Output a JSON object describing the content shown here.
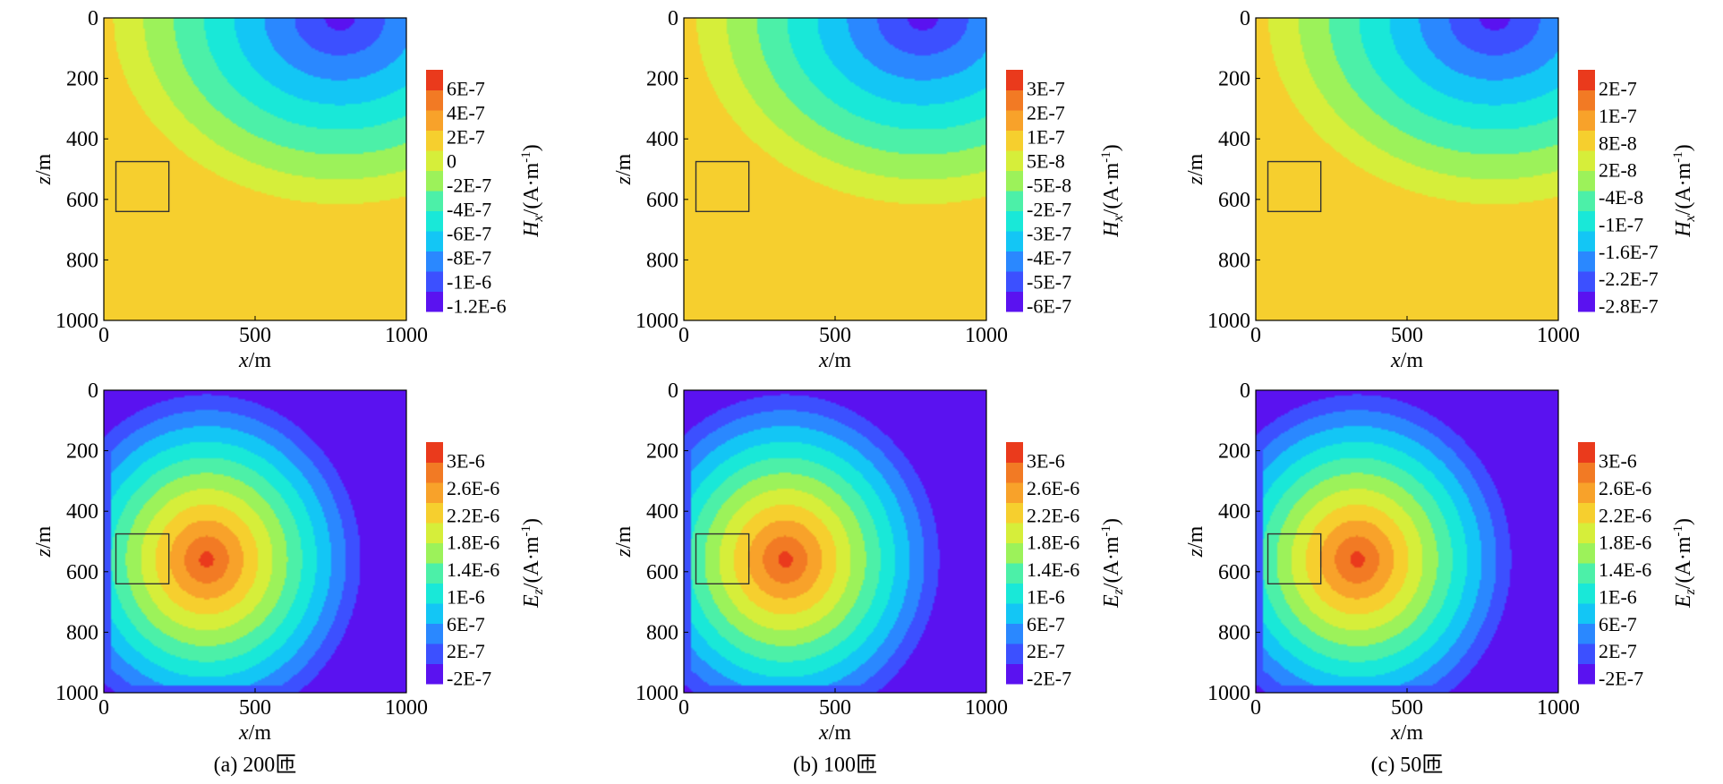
{
  "chart_data": [
    {
      "type": "heatmap",
      "panel": "a",
      "field": "Hx",
      "xlabel": {
        "var": "x",
        "unit": "/m"
      },
      "ylabel": {
        "var": "z",
        "unit": "/m"
      },
      "xlim": [
        0,
        1000
      ],
      "ylim": [
        0,
        1000
      ],
      "xticks": [
        "0",
        "500",
        "1000"
      ],
      "yticks": [
        "0",
        "200",
        "400",
        "600",
        "800",
        "1000"
      ],
      "anomaly_box": {
        "x": [
          40,
          215
        ],
        "z": [
          475,
          640
        ]
      },
      "colorbar": {
        "label": {
          "var": "H",
          "sub": "x",
          "unit_pre": "/(A·m",
          "unit_sup": "-1",
          "unit_post": ")"
        },
        "ticks": [
          "6E-7",
          "4E-7",
          "2E-7",
          "0",
          "-2E-7",
          "-4E-7",
          "-6E-7",
          "-8E-7",
          "-1E-6",
          "-1.2E-6"
        ]
      },
      "field_model": {
        "pattern": "hx",
        "hot_x": 780,
        "hot_z": 0
      }
    },
    {
      "type": "heatmap",
      "panel": "b",
      "field": "Hx",
      "xlabel": {
        "var": "x",
        "unit": "/m"
      },
      "ylabel": {
        "var": "z",
        "unit": "/m"
      },
      "xlim": [
        0,
        1000
      ],
      "ylim": [
        0,
        1000
      ],
      "xticks": [
        "0",
        "500",
        "1000"
      ],
      "yticks": [
        "0",
        "200",
        "400",
        "600",
        "800",
        "1000"
      ],
      "anomaly_box": {
        "x": [
          40,
          215
        ],
        "z": [
          475,
          640
        ]
      },
      "colorbar": {
        "label": {
          "var": "H",
          "sub": "x",
          "unit_pre": "/(A·m",
          "unit_sup": "-1",
          "unit_post": ")"
        },
        "ticks": [
          "3E-7",
          "2E-7",
          "1E-7",
          "5E-8",
          "-5E-8",
          "-2E-7",
          "-3E-7",
          "-4E-7",
          "-5E-7",
          "-6E-7"
        ]
      },
      "field_model": {
        "pattern": "hx",
        "hot_x": 790,
        "hot_z": 0
      }
    },
    {
      "type": "heatmap",
      "panel": "c",
      "field": "Hx",
      "xlabel": {
        "var": "x",
        "unit": "/m"
      },
      "ylabel": {
        "var": "z",
        "unit": "/m"
      },
      "xlim": [
        0,
        1000
      ],
      "ylim": [
        0,
        1000
      ],
      "xticks": [
        "0",
        "500",
        "1000"
      ],
      "yticks": [
        "0",
        "200",
        "400",
        "600",
        "800",
        "1000"
      ],
      "anomaly_box": {
        "x": [
          40,
          215
        ],
        "z": [
          475,
          640
        ]
      },
      "colorbar": {
        "label": {
          "var": "H",
          "sub": "x",
          "unit_pre": "/(A·m",
          "unit_sup": "-1",
          "unit_post": ")"
        },
        "ticks": [
          "2E-7",
          "1E-7",
          "8E-8",
          "2E-8",
          "-4E-8",
          "-1E-7",
          "-1.6E-7",
          "-2.2E-7",
          "-2.8E-7"
        ]
      },
      "field_model": {
        "pattern": "hx",
        "hot_x": 790,
        "hot_z": 0
      }
    },
    {
      "type": "heatmap",
      "panel": "a",
      "field": "Ez",
      "xlabel": {
        "var": "x",
        "unit": "/m"
      },
      "ylabel": {
        "var": "z",
        "unit": "/m"
      },
      "xlim": [
        0,
        1000
      ],
      "ylim": [
        0,
        1000
      ],
      "xticks": [
        "0",
        "500",
        "1000"
      ],
      "yticks": [
        "0",
        "200",
        "400",
        "600",
        "800",
        "1000"
      ],
      "anomaly_box": {
        "x": [
          40,
          215
        ],
        "z": [
          475,
          640
        ]
      },
      "colorbar": {
        "label": {
          "var": "E",
          "sub": "z",
          "unit_pre": "/(A·m",
          "unit_sup": "-1",
          "unit_post": ")"
        },
        "ticks": [
          "3E-6",
          "2.6E-6",
          "2.2E-6",
          "1.8E-6",
          "1.4E-6",
          "1E-6",
          "6E-7",
          "2E-7",
          "-2E-7"
        ]
      },
      "field_model": {
        "pattern": "ez",
        "hot_x": 340,
        "hot_z": 560
      }
    },
    {
      "type": "heatmap",
      "panel": "b",
      "field": "Ez",
      "xlabel": {
        "var": "x",
        "unit": "/m"
      },
      "ylabel": {
        "var": "z",
        "unit": "/m"
      },
      "xlim": [
        0,
        1000
      ],
      "ylim": [
        0,
        1000
      ],
      "xticks": [
        "0",
        "500",
        "1000"
      ],
      "yticks": [
        "0",
        "200",
        "400",
        "600",
        "800",
        "1000"
      ],
      "anomaly_box": {
        "x": [
          40,
          215
        ],
        "z": [
          475,
          640
        ]
      },
      "colorbar": {
        "label": {
          "var": "E",
          "sub": "z",
          "unit_pre": "/(A·m",
          "unit_sup": "-1",
          "unit_post": ")"
        },
        "ticks": [
          "3E-6",
          "2.6E-6",
          "2.2E-6",
          "1.8E-6",
          "1.4E-6",
          "1E-6",
          "6E-7",
          "2E-7",
          "-2E-7"
        ]
      },
      "field_model": {
        "pattern": "ez",
        "hot_x": 335,
        "hot_z": 560
      }
    },
    {
      "type": "heatmap",
      "panel": "c",
      "field": "Ez",
      "xlabel": {
        "var": "x",
        "unit": "/m"
      },
      "ylabel": {
        "var": "z",
        "unit": "/m"
      },
      "xlim": [
        0,
        1000
      ],
      "ylim": [
        0,
        1000
      ],
      "xticks": [
        "0",
        "500",
        "1000"
      ],
      "yticks": [
        "0",
        "200",
        "400",
        "600",
        "800",
        "1000"
      ],
      "anomaly_box": {
        "x": [
          40,
          215
        ],
        "z": [
          475,
          640
        ]
      },
      "colorbar": {
        "label": {
          "var": "E",
          "sub": "z",
          "unit_pre": "/(A·m",
          "unit_sup": "-1",
          "unit_post": ")"
        },
        "ticks": [
          "3E-6",
          "2.6E-6",
          "2.2E-6",
          "1.8E-6",
          "1.4E-6",
          "1E-6",
          "6E-7",
          "2E-7",
          "-2E-7"
        ]
      },
      "field_model": {
        "pattern": "ez",
        "hot_x": 335,
        "hot_z": 560
      }
    }
  ],
  "captions": [
    "(a) 200匝",
    "(b) 100匝",
    "(c) 50匝"
  ],
  "colormap": [
    "#5a12f0",
    "#3c50ff",
    "#2a88ff",
    "#13c6f5",
    "#19e8d8",
    "#4cf0a8",
    "#9cf25a",
    "#d6ee3a",
    "#f6cf2e",
    "#f8a22a",
    "#f27a24",
    "#ea3a1c"
  ]
}
